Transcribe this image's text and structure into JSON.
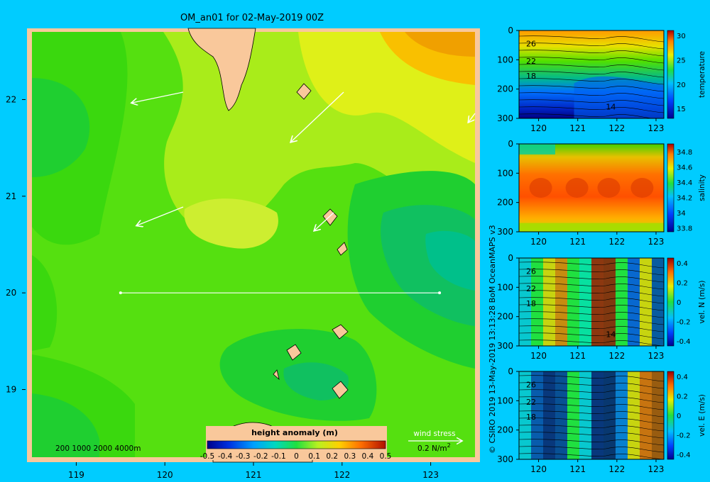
{
  "title": "OM_an01 for 02-May-2019 00Z",
  "credit": "© CSIRO 2019  13-May-2019 13:13:28 BoM OceanMAPS v3",
  "colors": {
    "background": "#00ccff",
    "land": "#f9c89b",
    "land_outline": "#000000",
    "vector": "#ffffff"
  },
  "chart_data": [
    {
      "type": "heatmap",
      "variable": "height anomaly (m)",
      "xlim": [
        118.5,
        123.5
      ],
      "ylim": [
        18.3,
        22.7
      ],
      "x_ticks": [
        "119",
        "120",
        "121",
        "122",
        "123"
      ],
      "y_ticks": [
        "19",
        "20",
        "21",
        "22"
      ],
      "colorbar_label": "height anomaly (m)",
      "colorbar_ticks": [
        "-0.5",
        "-0.4",
        "-0.3",
        "-0.2",
        "-0.1",
        "0",
        "0.1",
        "0.2",
        "0.3",
        "0.4",
        "0.5"
      ],
      "colorbar_range": [
        -0.5,
        0.5
      ],
      "depth_legend": "200  1000  2000  4000m",
      "wind_stress_label": "wind stress",
      "wind_stress_unit": "0.2 N/m",
      "wind_stress_unit_superscript": "2",
      "section_line": {
        "lat": 20.0,
        "lon_start": 119.5,
        "lon_end": 123.1
      },
      "values_description": [
        {
          "region": "NE corner",
          "value": 0.3
        },
        {
          "region": "north central",
          "value": 0.15
        },
        {
          "region": "central",
          "value": 0.05
        },
        {
          "region": "west",
          "value": 0.0
        },
        {
          "region": "SE eddy",
          "value": -0.1
        },
        {
          "region": "S central eddy",
          "value": -0.05
        }
      ],
      "grid": false
    },
    {
      "type": "heatmap",
      "variable": "temperature",
      "x_ticks": [
        "120",
        "121",
        "122",
        "123"
      ],
      "y_ticks": [
        "0",
        "100",
        "200",
        "300"
      ],
      "xlim": [
        119.5,
        123.2
      ],
      "ylim": [
        300,
        0
      ],
      "colorbar_ticks": [
        "15",
        "20",
        "25",
        "30"
      ],
      "colorbar_range": [
        13,
        31
      ],
      "colorbar_label": "temperature",
      "contour_labels": [
        "26",
        "22",
        "18",
        "14"
      ]
    },
    {
      "type": "heatmap",
      "variable": "salinity",
      "x_ticks": [
        "120",
        "121",
        "122",
        "123"
      ],
      "y_ticks": [
        "0",
        "100",
        "200",
        "300"
      ],
      "xlim": [
        119.5,
        123.2
      ],
      "ylim": [
        300,
        0
      ],
      "colorbar_ticks": [
        "33.8",
        "34",
        "34.2",
        "34.4",
        "34.6",
        "34.8"
      ],
      "colorbar_range": [
        33.75,
        34.9
      ],
      "colorbar_label": "salinity"
    },
    {
      "type": "heatmap",
      "variable": "vel. N (m/s)",
      "x_ticks": [
        "120",
        "121",
        "122",
        "123"
      ],
      "y_ticks": [
        "0",
        "100",
        "200",
        "300"
      ],
      "xlim": [
        119.5,
        123.2
      ],
      "ylim": [
        300,
        0
      ],
      "colorbar_ticks": [
        "-0.4",
        "-0.2",
        "0",
        "0.2",
        "0.4"
      ],
      "colorbar_range": [
        -0.45,
        0.45
      ],
      "colorbar_label": "vel. N (m/s)",
      "contour_labels": [
        "26",
        "22",
        "18",
        "14"
      ]
    },
    {
      "type": "heatmap",
      "variable": "vel. E (m/s)",
      "x_ticks": [
        "120",
        "121",
        "122",
        "123"
      ],
      "y_ticks": [
        "0",
        "100",
        "200",
        "300"
      ],
      "xlim": [
        119.5,
        123.2
      ],
      "ylim": [
        300,
        0
      ],
      "colorbar_ticks": [
        "-0.4",
        "-0.2",
        "0",
        "0.2",
        "0.4"
      ],
      "colorbar_range": [
        -0.45,
        0.45
      ],
      "colorbar_label": "vel. E (m/s)",
      "contour_labels": [
        "26",
        "22",
        "18"
      ]
    }
  ]
}
